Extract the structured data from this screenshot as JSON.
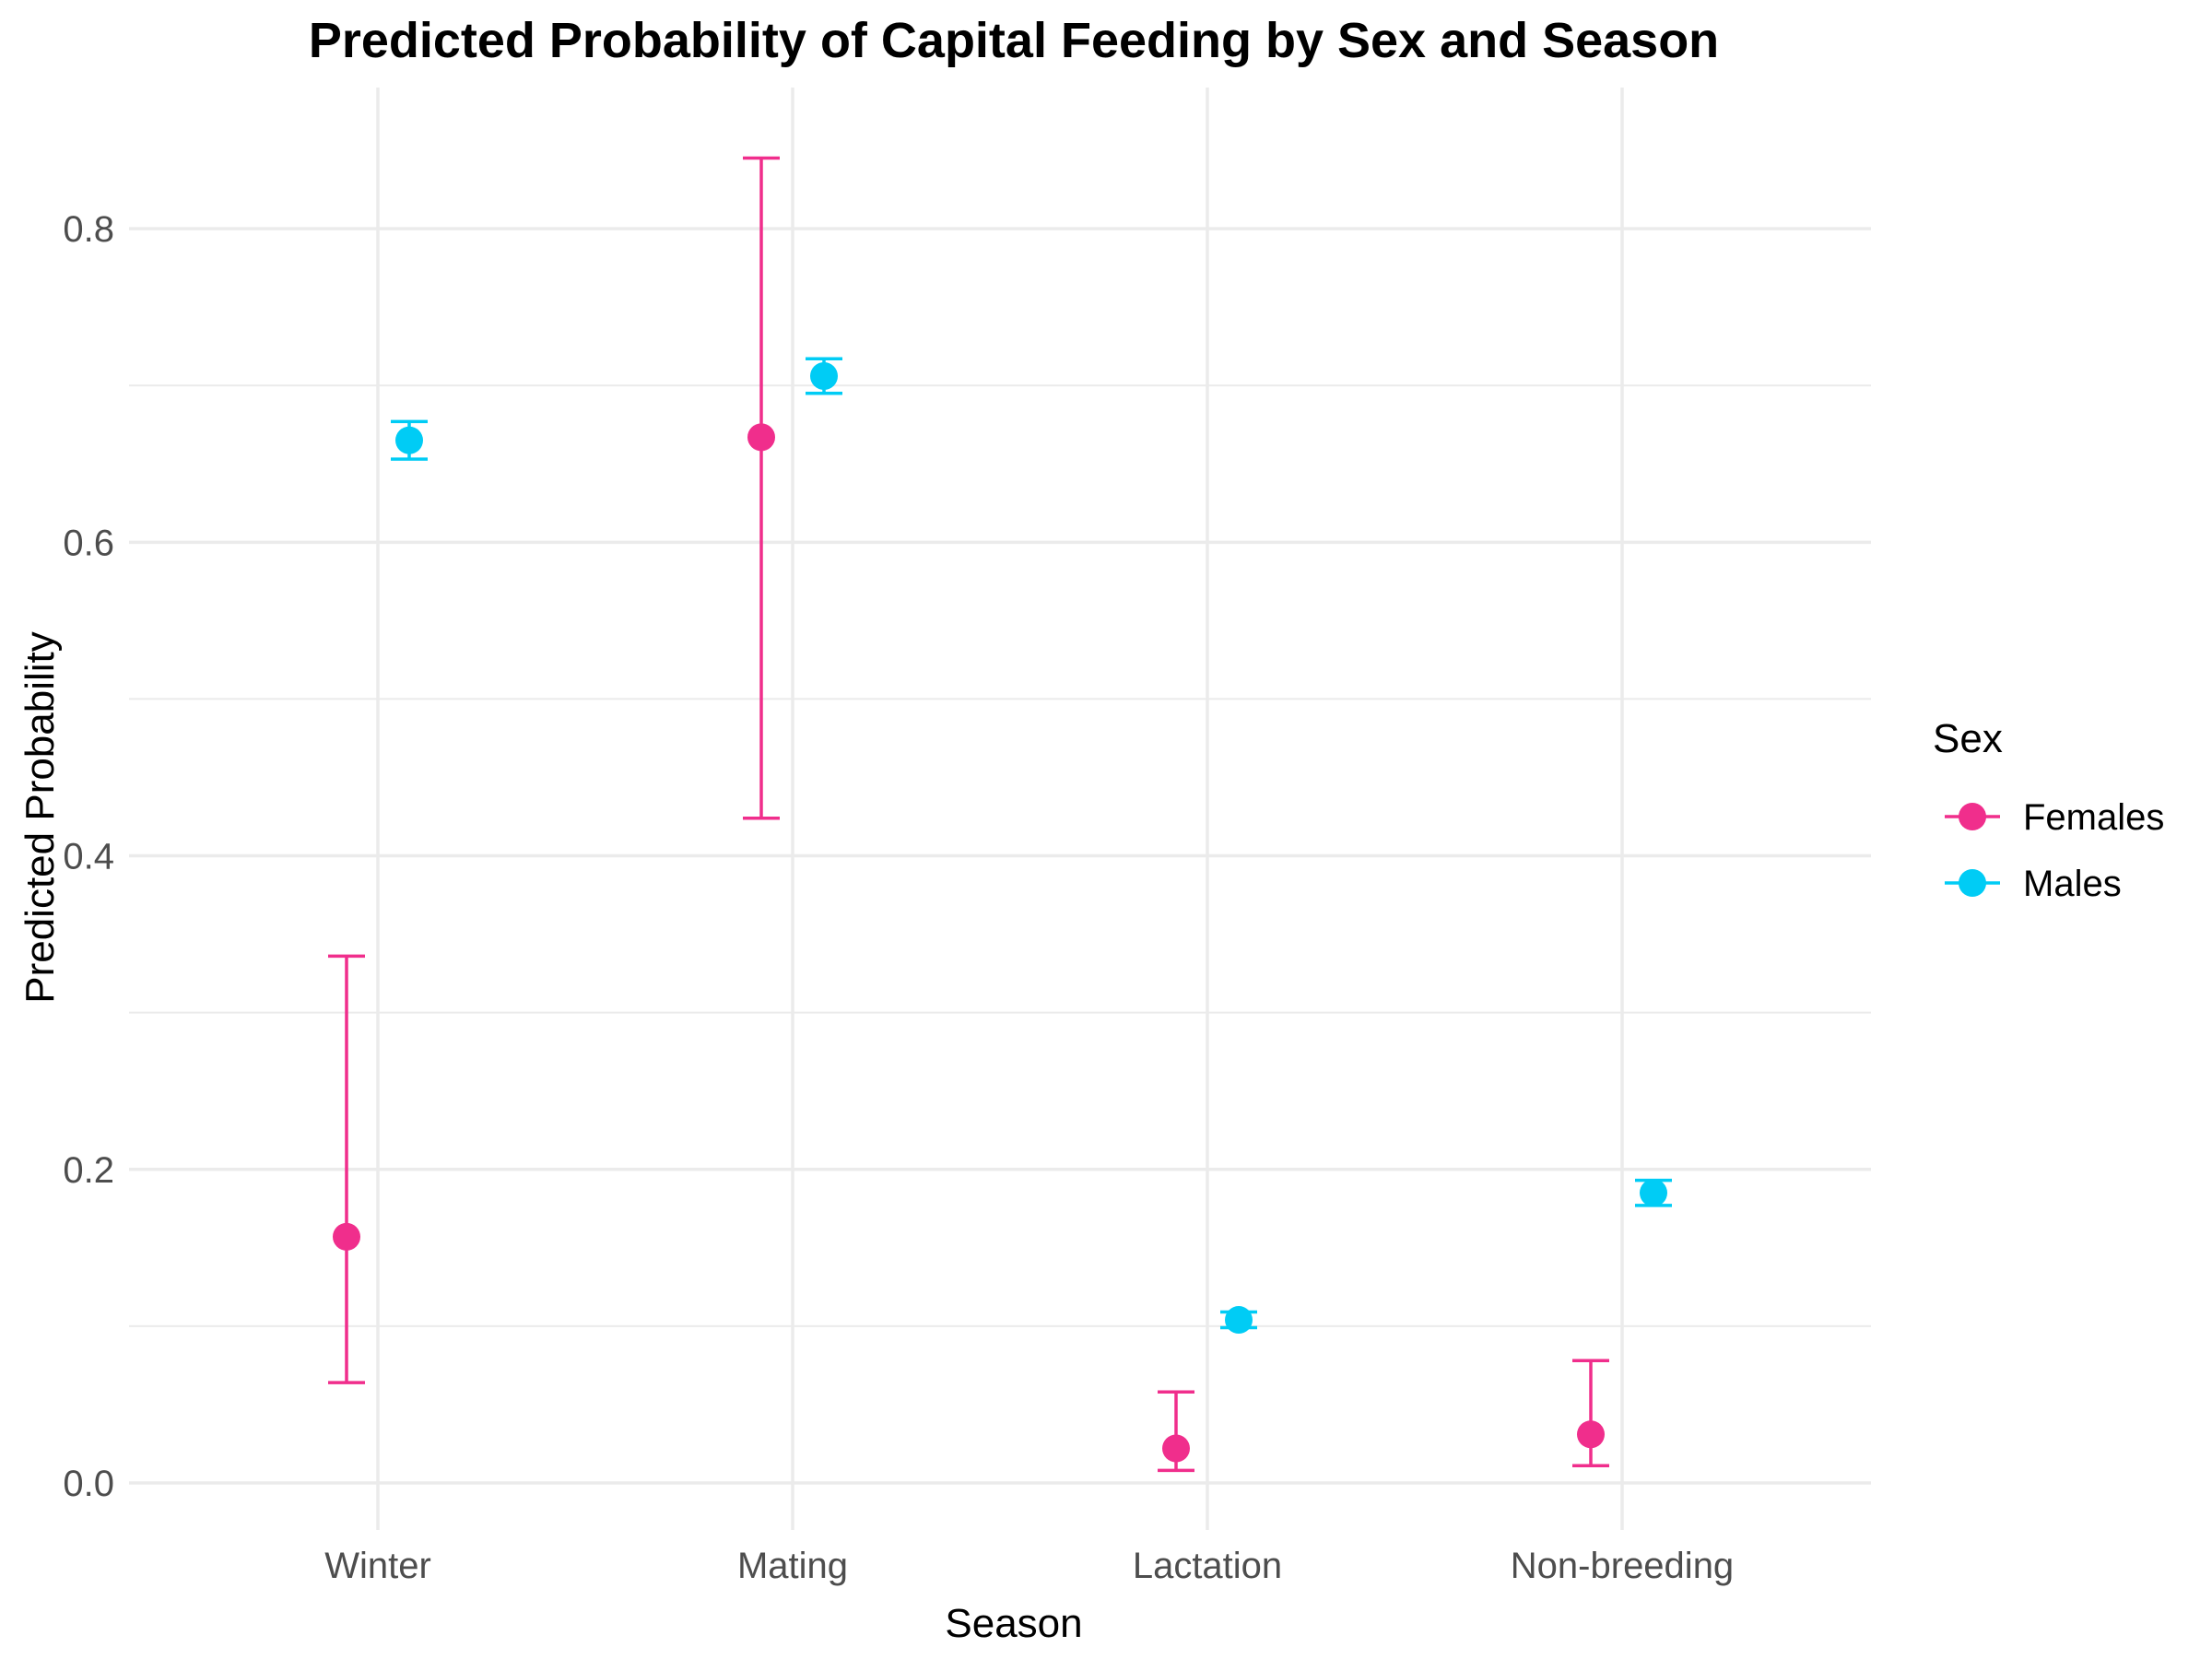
{
  "chart_data": {
    "type": "scatter",
    "title": "Predicted Probability of Capital Feeding by Sex and Season",
    "xlabel": "Season",
    "ylabel": "Predicted Probability",
    "categories": [
      "Winter",
      "Mating",
      "Lactation",
      "Non-breeding"
    ],
    "ylim": [
      -0.03,
      0.89
    ],
    "y_ticks": [
      "0.0",
      "0.2",
      "0.4",
      "0.6",
      "0.8"
    ],
    "grid": true,
    "legend_title": "Sex",
    "legend_position": "right",
    "series": [
      {
        "name": "Females",
        "color": "#F02E8C",
        "values": [
          0.157,
          0.667,
          0.022,
          0.031
        ],
        "lower": [
          0.064,
          0.424,
          0.008,
          0.011
        ],
        "upper": [
          0.336,
          0.845,
          0.058,
          0.078
        ]
      },
      {
        "name": "Males",
        "color": "#00CCF5",
        "values": [
          0.665,
          0.706,
          0.104,
          0.185
        ],
        "lower": [
          0.653,
          0.695,
          0.099,
          0.177
        ],
        "upper": [
          0.677,
          0.717,
          0.109,
          0.193
        ]
      }
    ]
  }
}
